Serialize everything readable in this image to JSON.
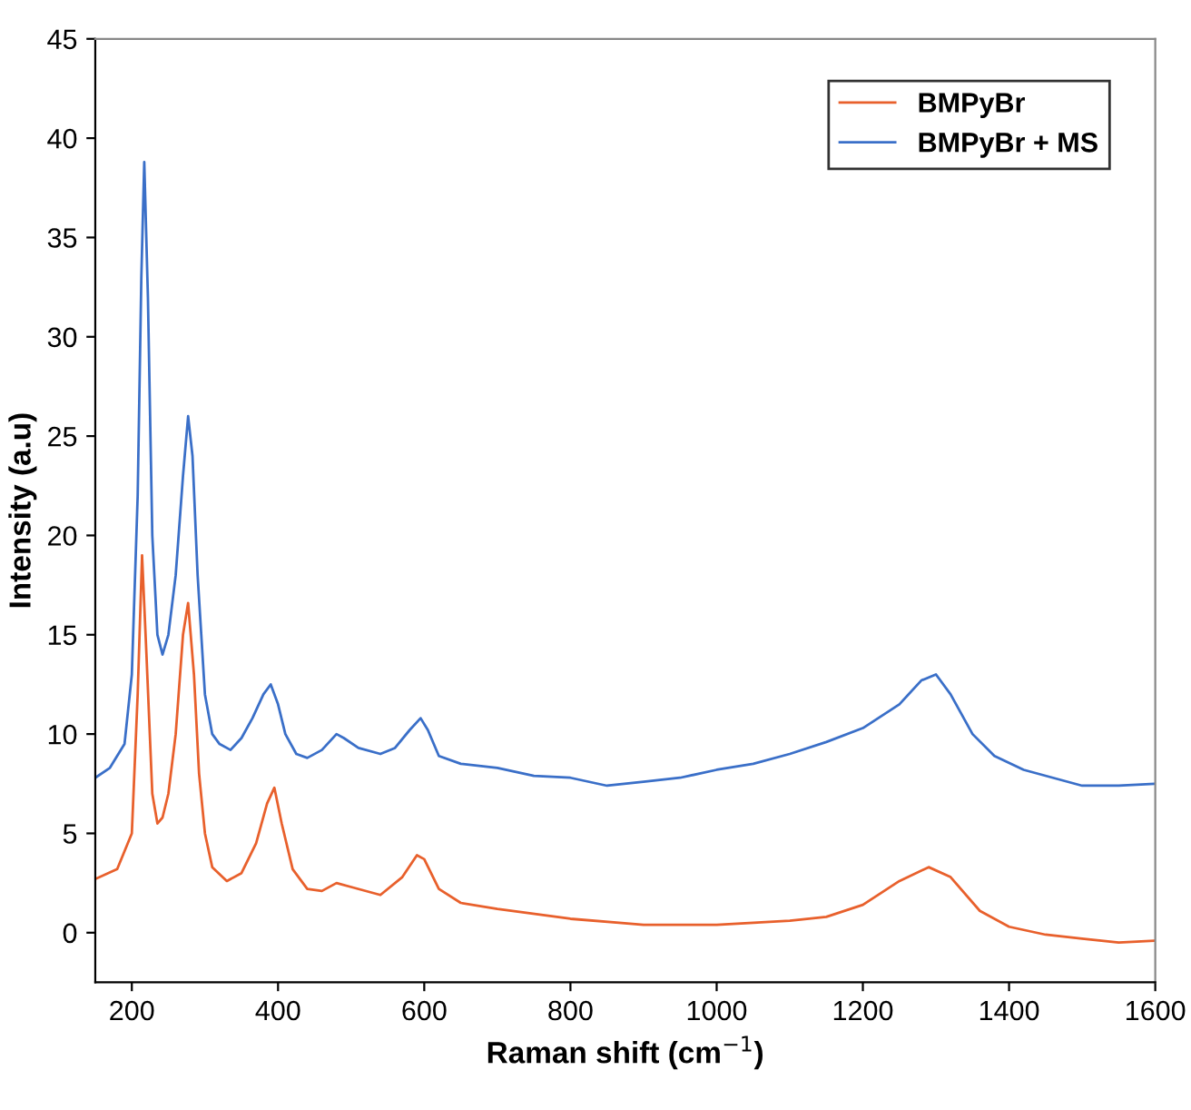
{
  "chart_data": {
    "type": "line",
    "xlabel": "Raman shift (cm$^{−1}$)",
    "ylabel": "Intensity (a.u)",
    "xlim": [
      150,
      1600
    ],
    "ylim": [
      -2.5,
      45
    ],
    "xticks": [
      200,
      400,
      600,
      800,
      1000,
      1200,
      1400,
      1600
    ],
    "yticks": [
      0,
      5,
      10,
      15,
      20,
      25,
      30,
      35,
      40,
      45
    ],
    "grid": false,
    "legend": "top right",
    "marker": "none",
    "line_style": "solid",
    "series": [
      {
        "name": "BMPyBr",
        "color": "#e8602c",
        "x": [
          150,
          180,
          200,
          208,
          214,
          220,
          228,
          235,
          242,
          250,
          260,
          270,
          277,
          285,
          292,
          300,
          310,
          330,
          350,
          370,
          385,
          395,
          405,
          420,
          440,
          460,
          480,
          500,
          540,
          570,
          590,
          600,
          620,
          650,
          700,
          800,
          900,
          1000,
          1100,
          1150,
          1200,
          1250,
          1290,
          1320,
          1360,
          1400,
          1450,
          1500,
          1550,
          1600
        ],
        "values": [
          2.7,
          3.2,
          5,
          12,
          19,
          14,
          7,
          5.5,
          5.8,
          7,
          10,
          15,
          16.6,
          13,
          8,
          5,
          3.3,
          2.6,
          3,
          4.5,
          6.5,
          7.3,
          5.5,
          3.2,
          2.2,
          2.1,
          2.5,
          2.3,
          1.9,
          2.8,
          3.9,
          3.7,
          2.2,
          1.5,
          1.2,
          0.7,
          0.4,
          0.4,
          0.6,
          0.8,
          1.4,
          2.6,
          3.3,
          2.8,
          1.1,
          0.3,
          -0.1,
          -0.3,
          -0.5,
          -0.4
        ]
      },
      {
        "name": "BMPyBr + MS",
        "color": "#3a6fc8",
        "x": [
          150,
          170,
          190,
          200,
          208,
          213,
          217,
          222,
          228,
          235,
          242,
          250,
          260,
          270,
          277,
          283,
          290,
          300,
          310,
          320,
          335,
          350,
          365,
          380,
          390,
          400,
          410,
          425,
          440,
          460,
          480,
          490,
          510,
          540,
          560,
          580,
          595,
          605,
          620,
          650,
          700,
          750,
          800,
          850,
          900,
          950,
          1000,
          1050,
          1100,
          1150,
          1200,
          1250,
          1280,
          1300,
          1320,
          1350,
          1380,
          1420,
          1460,
          1500,
          1550,
          1600
        ],
        "values": [
          7.8,
          8.3,
          9.5,
          13,
          22,
          33,
          38.8,
          32,
          20,
          15,
          14,
          15,
          18,
          23,
          26,
          24,
          18,
          12,
          10,
          9.5,
          9.2,
          9.8,
          10.8,
          12,
          12.5,
          11.5,
          10,
          9,
          8.8,
          9.2,
          10,
          9.8,
          9.3,
          9,
          9.3,
          10.2,
          10.8,
          10.2,
          8.9,
          8.5,
          8.3,
          7.9,
          7.8,
          7.4,
          7.6,
          7.8,
          8.2,
          8.5,
          9,
          9.6,
          10.3,
          11.5,
          12.7,
          13,
          12,
          10,
          8.9,
          8.2,
          7.8,
          7.4,
          7.4,
          7.5
        ]
      }
    ]
  }
}
